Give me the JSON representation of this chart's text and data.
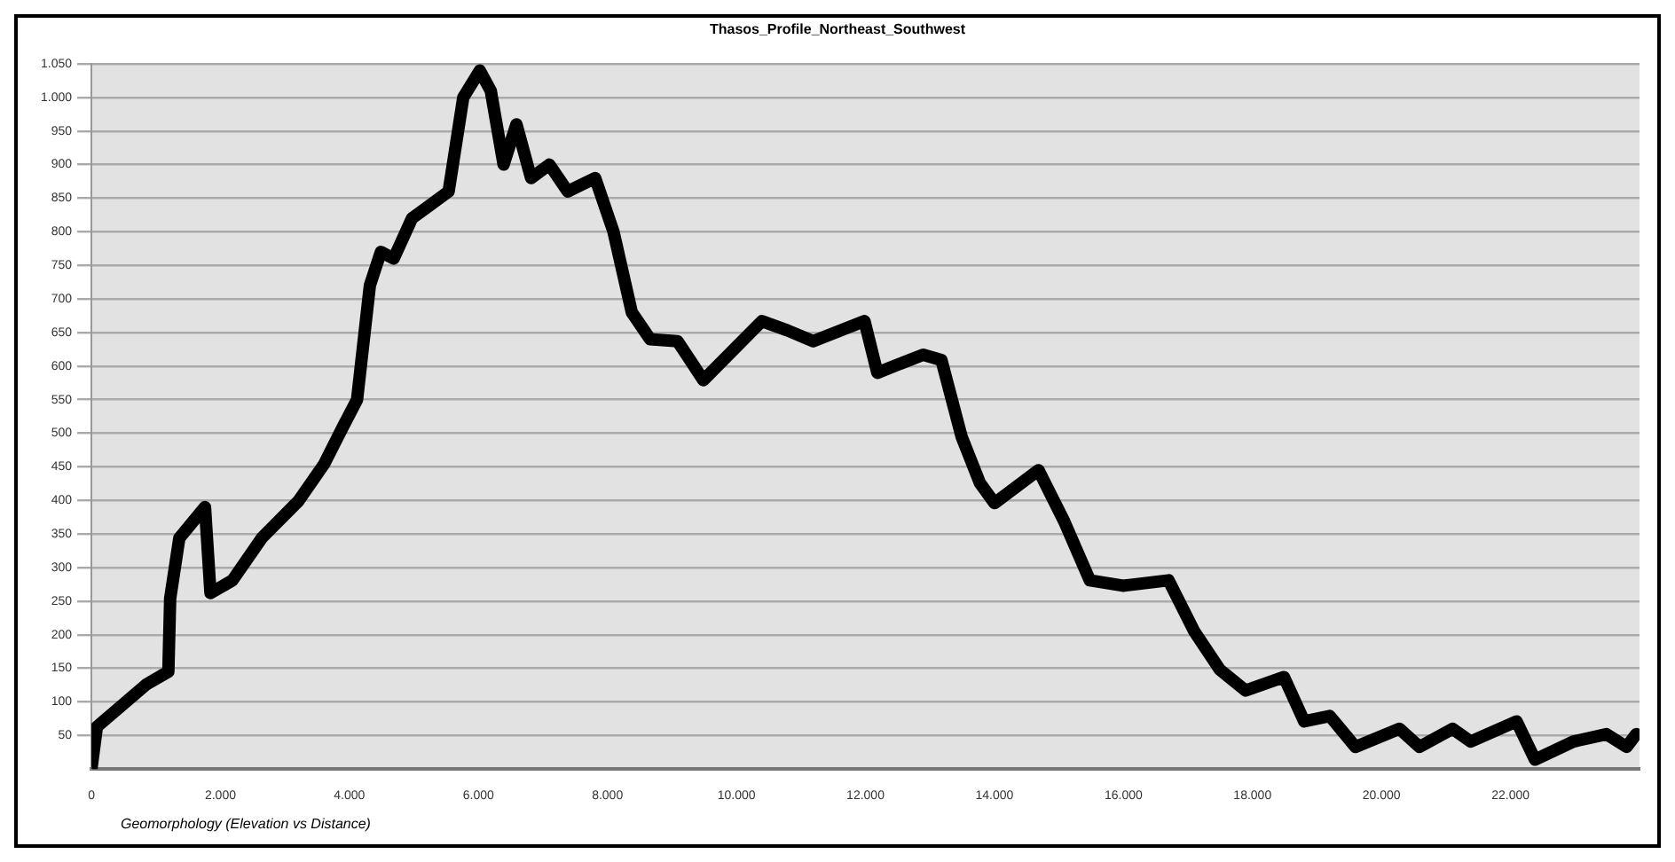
{
  "chart_data": {
    "type": "line",
    "title": "Thasos_Profile_Northeast_Southwest",
    "annotations": [
      "Geomorphology (Elevation vs Distance)"
    ],
    "x": [
      0,
      85,
      511,
      852,
      1193,
      1221,
      1363,
      1761,
      1846,
      2187,
      2641,
      3209,
      3607,
      3891,
      4118,
      4317,
      4487,
      4686,
      4970,
      5254,
      5538,
      5765,
      6021,
      6191,
      6390,
      6589,
      6816,
      7100,
      7384,
      7810,
      8094,
      8378,
      8662,
      9088,
      9486,
      10394,
      10792,
      11190,
      11985,
      12184,
      12894,
      13178,
      13490,
      13774,
      14001,
      14683,
      15080,
      15478,
      15989,
      16699,
      17097,
      17494,
      17892,
      18488,
      18801,
      19198,
      19596,
      20278,
      20590,
      21101,
      21385,
      22095,
      22379,
      22976,
      23487,
      23799,
      23950
    ],
    "series": [
      {
        "color": "#000000",
        "values": [
          0,
          63,
          98,
          126,
          145,
          254,
          344,
          390,
          262,
          281,
          344,
          399,
          454,
          508,
          550,
          720,
          770,
          760,
          820,
          840,
          860,
          1000,
          1040,
          1010,
          900,
          960,
          880,
          900,
          860,
          880,
          800,
          680,
          640,
          637,
          579,
          667,
          653,
          637,
          667,
          590,
          617,
          609,
          495,
          426,
          396,
          445,
          369,
          281,
          273,
          281,
          205,
          148,
          117,
          137,
          71,
          79,
          33,
          60,
          33,
          60,
          41,
          71,
          14,
          41,
          52,
          33,
          52
        ]
      }
    ],
    "xlim": [
      0,
      24000
    ],
    "ylim": [
      0,
      1050
    ],
    "xticks": [
      0,
      {
        "value": 2000,
        "label": "2.000"
      },
      {
        "value": 4000,
        "label": "4.000"
      },
      {
        "value": 6000,
        "label": "6.000"
      },
      {
        "value": 8000,
        "label": "8.000"
      },
      {
        "value": 10000,
        "label": "10.000"
      },
      {
        "value": 12000,
        "label": "12.000"
      },
      {
        "value": 14000,
        "label": "14.000"
      },
      {
        "value": 16000,
        "label": "16.000"
      },
      {
        "value": 18000,
        "label": "18.000"
      },
      {
        "value": 20000,
        "label": "20.000"
      },
      {
        "value": 22000,
        "label": "22.000"
      }
    ],
    "yticks": [
      50,
      100,
      150,
      200,
      250,
      300,
      350,
      400,
      450,
      500,
      550,
      600,
      650,
      700,
      750,
      800,
      850,
      900,
      950,
      {
        "value": 1000,
        "label": "1.000"
      },
      {
        "value": 1050,
        "label": "1.050"
      }
    ],
    "grid": "y",
    "marker": "none",
    "line_style": "solid"
  }
}
